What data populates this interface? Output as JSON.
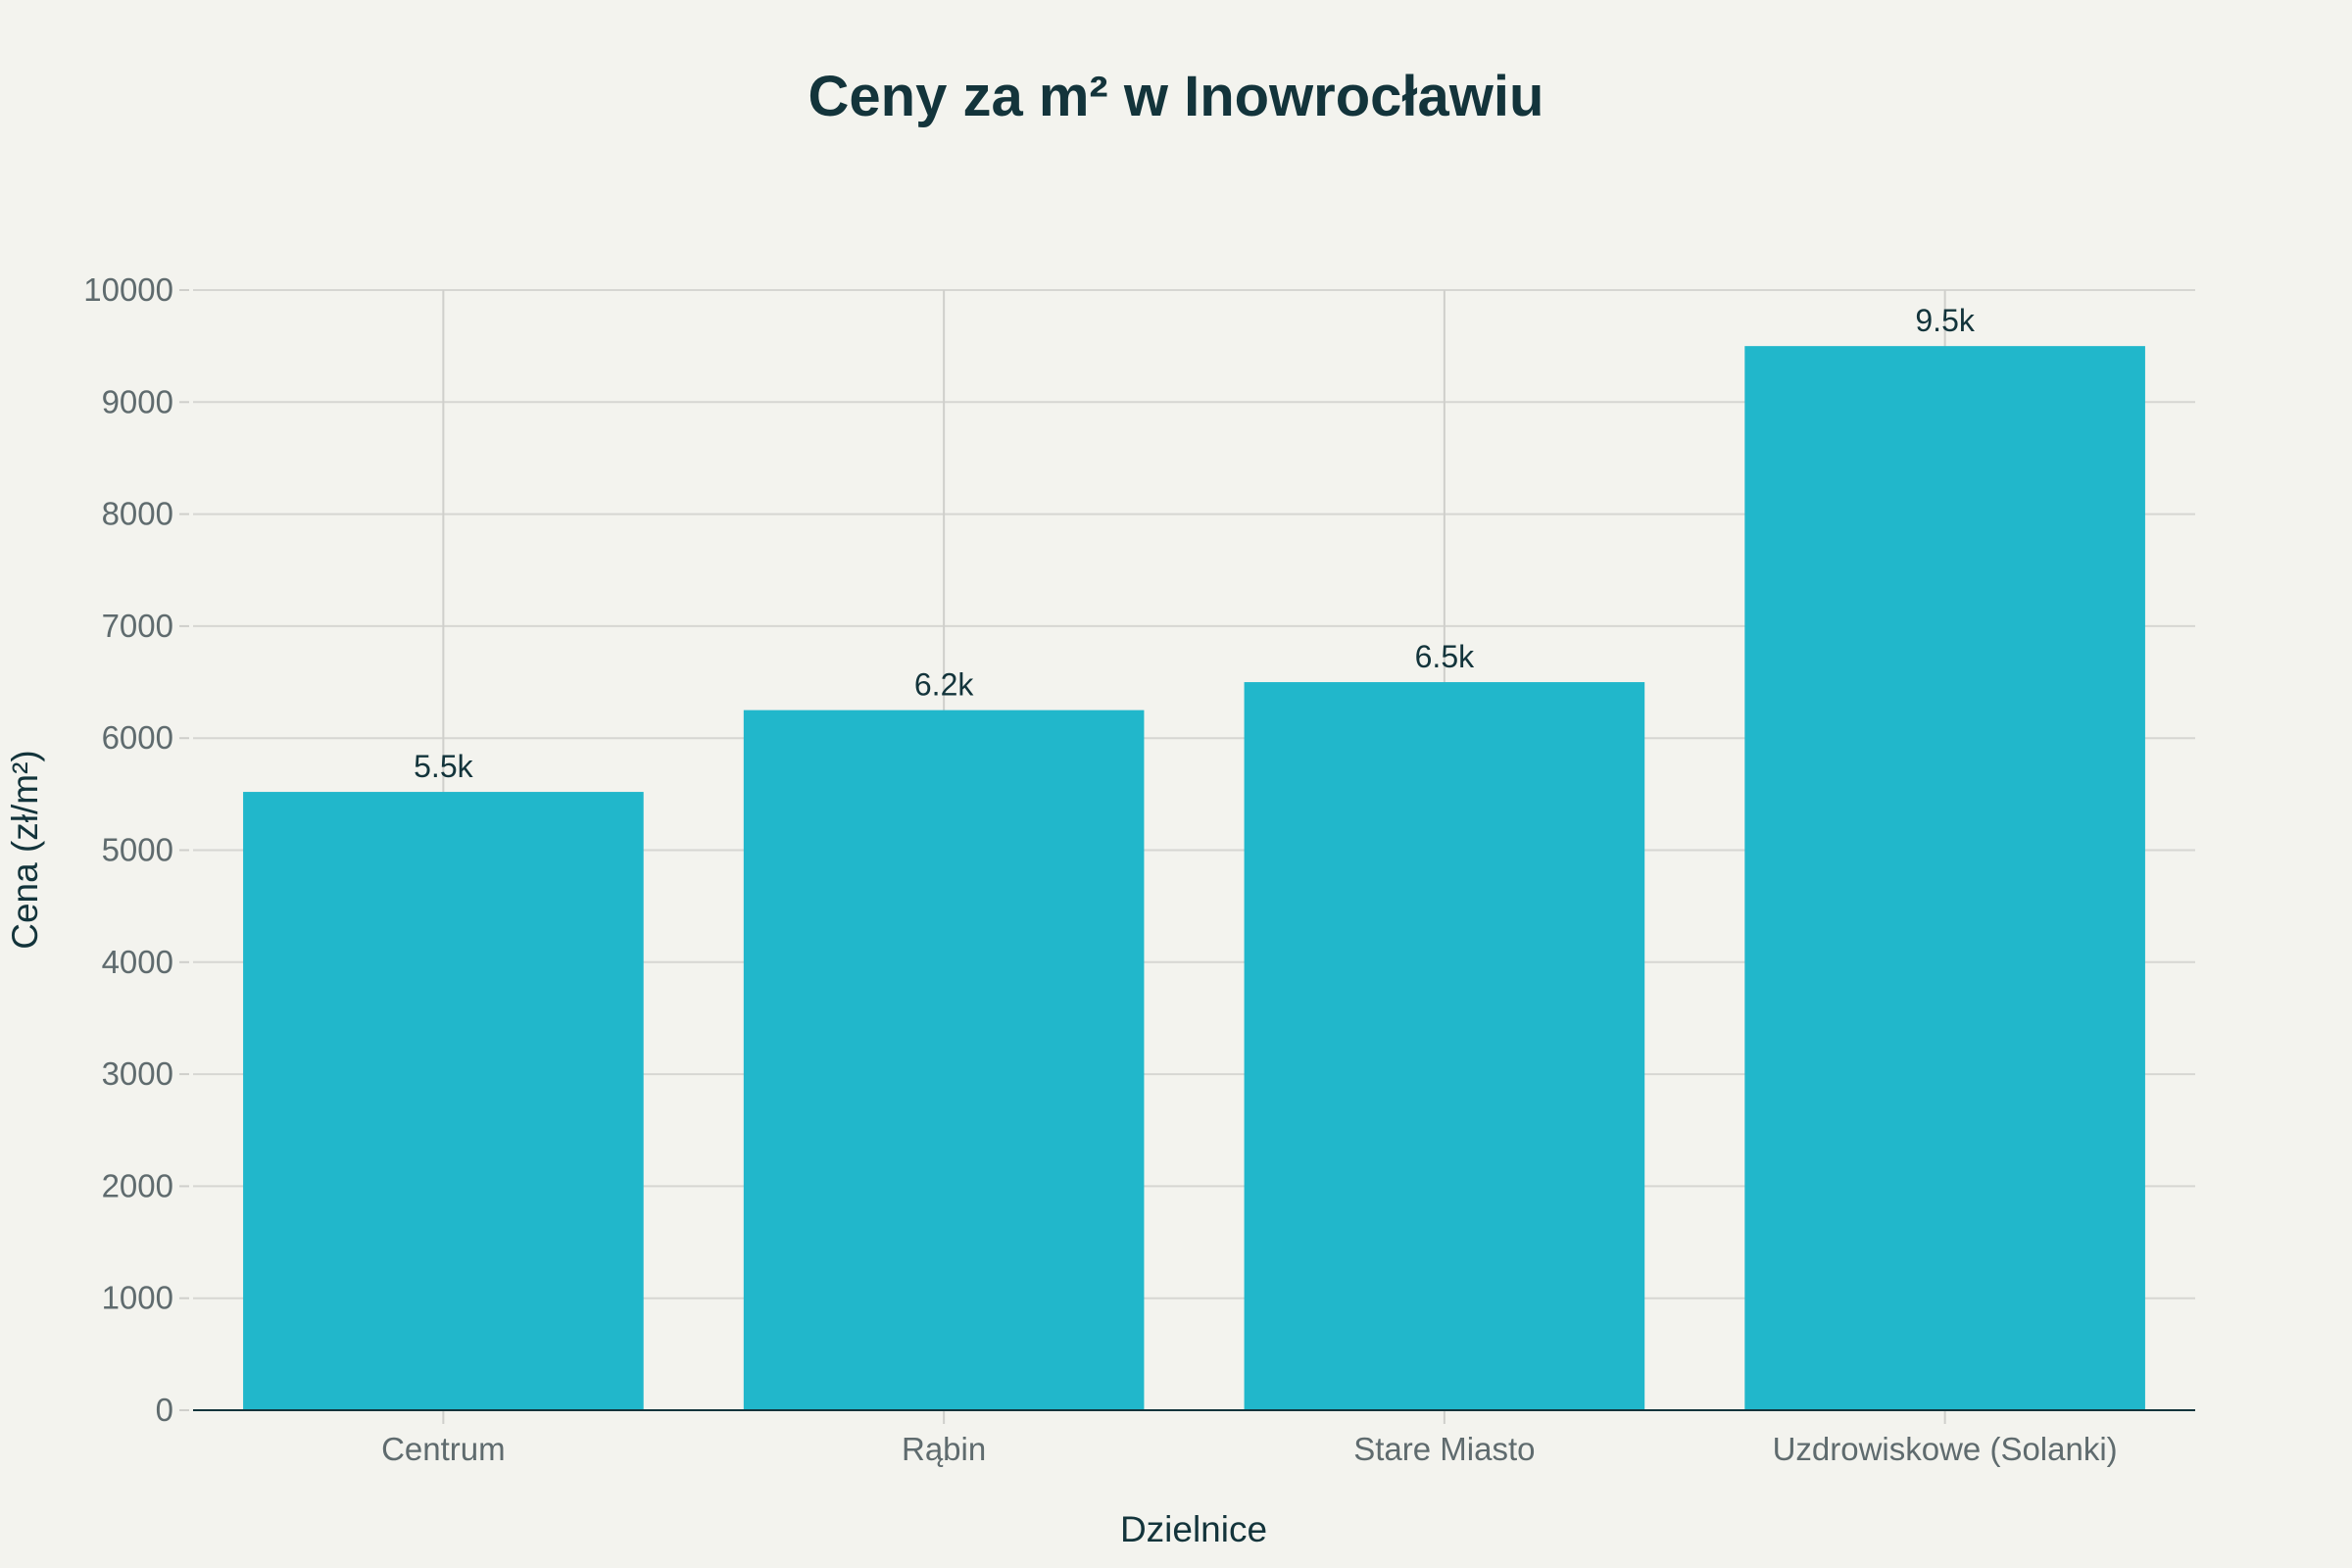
{
  "chart_data": {
    "type": "bar",
    "title": "Ceny za m² w Inowrocławiu",
    "xlabel": "Dzielnice",
    "ylabel": "Cena (zł/m²)",
    "categories": [
      "Centrum",
      "Rąbin",
      "Stare Miasto",
      "Uzdrowiskowe (Solanki)"
    ],
    "values": [
      5520,
      6250,
      6500,
      9500
    ],
    "data_labels": [
      "5.5k",
      "6.2k",
      "6.5k",
      "9.5k"
    ],
    "ylim": [
      0,
      10000
    ],
    "yticks": [
      "0",
      "1000",
      "2000",
      "3000",
      "4000",
      "5000",
      "6000",
      "7000",
      "8000",
      "9000",
      "10000"
    ],
    "ytick_values": [
      0,
      1000,
      2000,
      3000,
      4000,
      5000,
      6000,
      7000,
      8000,
      9000,
      10000
    ],
    "grid": true,
    "legend": "none",
    "bar_color": "#21b7cb"
  }
}
